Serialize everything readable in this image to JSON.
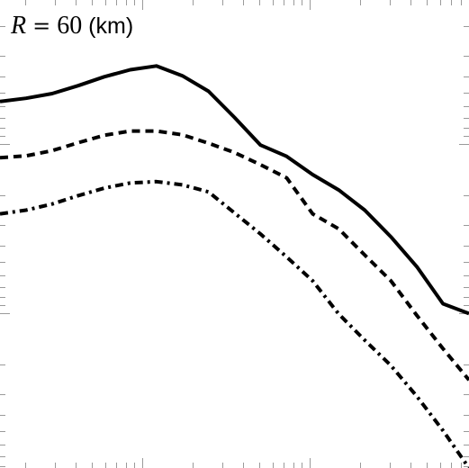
{
  "chart_data": {
    "type": "line",
    "title": "",
    "annotation": {
      "symbol": "R",
      "equals": "=",
      "value": "60",
      "unit": "(km)"
    },
    "xlabel": "",
    "ylabel": "",
    "x_scale": "log",
    "y_scale": "log",
    "x_tick_labels": [],
    "y_tick_labels": [],
    "legend": "none",
    "grid": false,
    "x": [
      0,
      1,
      2,
      3,
      4,
      5,
      6,
      7,
      8,
      9,
      10,
      11,
      12,
      13,
      14,
      15,
      16,
      17,
      18
    ],
    "series": [
      {
        "style": "solid",
        "color": "#000000",
        "values": [
          0.783,
          0.79,
          0.8,
          0.817,
          0.836,
          0.851,
          0.859,
          0.838,
          0.805,
          0.749,
          0.69,
          0.666,
          0.627,
          0.594,
          0.551,
          0.494,
          0.43,
          0.351,
          0.33
        ]
      },
      {
        "style": "dashed",
        "color": "#000000",
        "values": [
          0.663,
          0.667,
          0.678,
          0.695,
          0.711,
          0.72,
          0.72,
          0.712,
          0.694,
          0.674,
          0.648,
          0.62,
          0.543,
          0.511,
          0.455,
          0.4,
          0.326,
          0.255,
          0.188
        ]
      },
      {
        "style": "dash-dot",
        "color": "#000000",
        "values": [
          0.543,
          0.551,
          0.564,
          0.582,
          0.598,
          0.609,
          0.612,
          0.605,
          0.59,
          0.545,
          0.5,
          0.451,
          0.4,
          0.329,
          0.273,
          0.219,
          0.153,
          0.08,
          0.0
        ]
      }
    ]
  }
}
